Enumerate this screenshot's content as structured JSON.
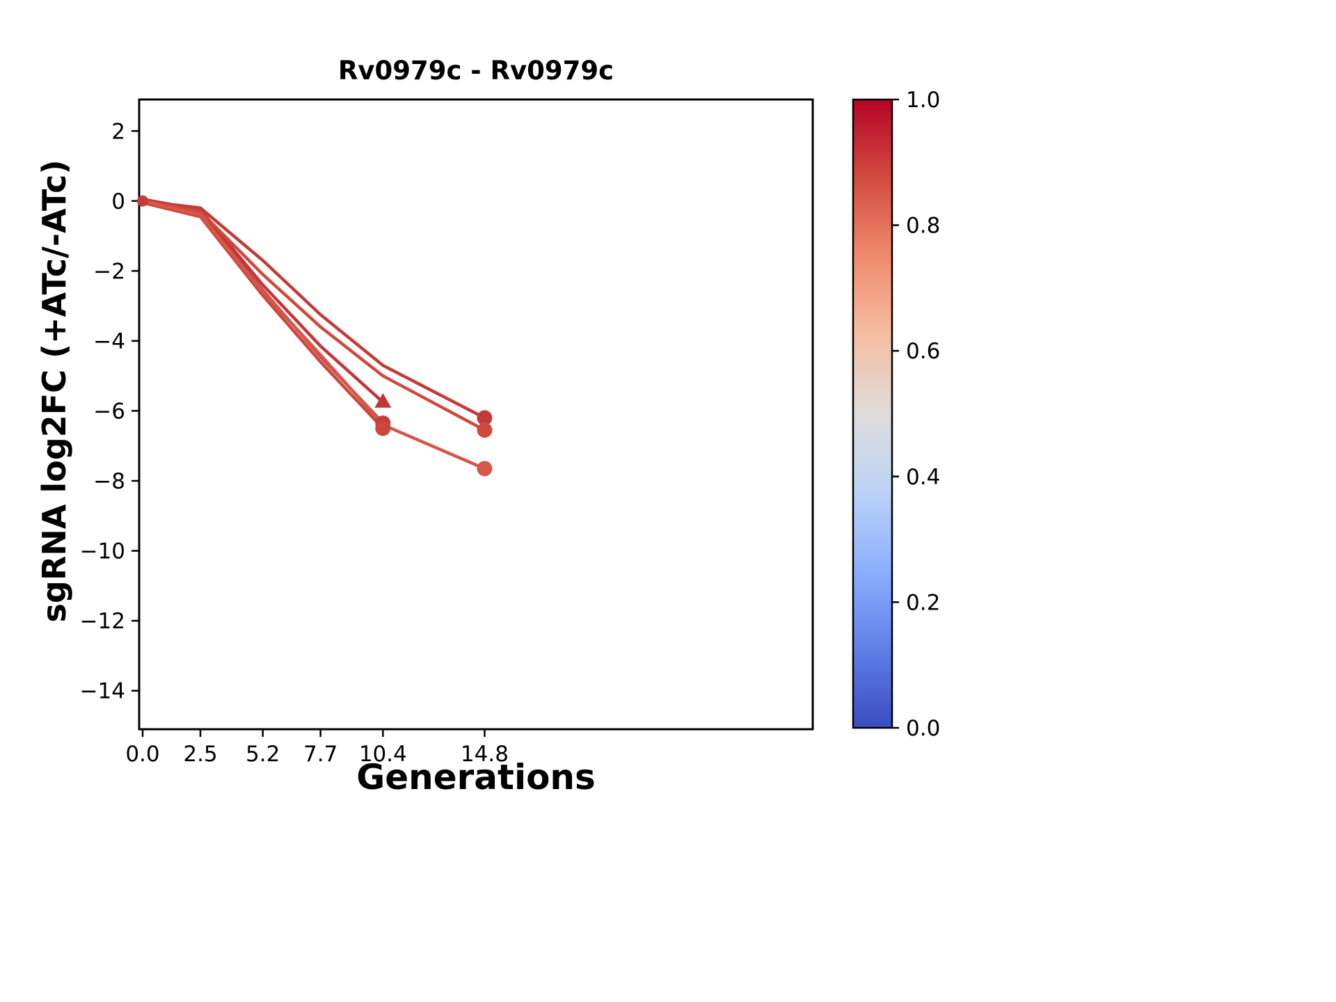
{
  "figure": {
    "background": "#ffffff"
  },
  "chart_data": {
    "type": "line",
    "title": "Rv0979c - Rv0979c",
    "xlabel": "Generations",
    "ylabel": "sgRNA log2FC (+ATc/-ATc)",
    "xlim": [
      -0.15,
      29.0
    ],
    "ylim": [
      -15.1,
      2.9
    ],
    "grid": false,
    "legend": "none",
    "x_ticks": [
      {
        "value": 0.0,
        "label": "0.0"
      },
      {
        "value": 2.5,
        "label": "2.5"
      },
      {
        "value": 5.2,
        "label": "5.2"
      },
      {
        "value": 7.7,
        "label": "7.7"
      },
      {
        "value": 10.4,
        "label": "10.4"
      },
      {
        "value": 14.8,
        "label": "14.8"
      }
    ],
    "y_ticks": [
      {
        "value": 2,
        "label": "2"
      },
      {
        "value": 0,
        "label": "0"
      },
      {
        "value": -2,
        "label": "−2"
      },
      {
        "value": -4,
        "label": "−4"
      },
      {
        "value": -6,
        "label": "−6"
      },
      {
        "value": -8,
        "label": "−8"
      },
      {
        "value": -10,
        "label": "−10"
      },
      {
        "value": -12,
        "label": "−12"
      },
      {
        "value": -14,
        "label": "−14"
      }
    ],
    "series": [
      {
        "marker": "triangle",
        "color": "#c13639",
        "x": [
          0,
          2.5,
          5.2,
          7.7,
          10.4
        ],
        "y": [
          0.05,
          -0.25,
          -2.4,
          -4.15,
          -5.75
        ]
      },
      {
        "marker": "circle",
        "color": "#c73b38",
        "x": [
          0,
          2.5,
          5.2,
          7.7,
          10.4
        ],
        "y": [
          0.0,
          -0.35,
          -2.55,
          -4.45,
          -6.35
        ]
      },
      {
        "marker": "circle",
        "color": "#cc463d",
        "x": [
          0,
          2.5,
          5.2,
          7.7,
          10.4
        ],
        "y": [
          -0.05,
          -0.45,
          -2.7,
          -4.6,
          -6.5
        ]
      },
      {
        "marker": "circle",
        "color": "#c43a39",
        "x": [
          0,
          2.5,
          5.2,
          7.7,
          10.4,
          14.8
        ],
        "y": [
          0.0,
          -0.2,
          -1.7,
          -3.25,
          -4.7,
          -6.2
        ]
      },
      {
        "marker": "circle",
        "color": "#ce4a3f",
        "x": [
          0,
          2.5,
          5.2,
          7.7,
          10.4,
          14.8
        ],
        "y": [
          0.0,
          -0.3,
          -2.1,
          -3.6,
          -5.0,
          -6.55
        ]
      },
      {
        "marker": "circle",
        "color": "#d5574a",
        "x": [
          0,
          2.5,
          5.2,
          7.7,
          10.4,
          14.8
        ],
        "y": [
          0.0,
          -0.4,
          -2.6,
          -4.4,
          -6.4,
          -7.65
        ]
      }
    ],
    "extra_markers": [
      {
        "x": 0,
        "y": 0,
        "marker": "circle",
        "color": "#c73b38",
        "size": 8
      }
    ],
    "colorbar": {
      "position": "right",
      "range": [
        0,
        1
      ],
      "top_value": 1.0,
      "ticks": [
        {
          "value": 1.0,
          "label": "1.0"
        },
        {
          "value": 0.8,
          "label": "0.8"
        },
        {
          "value": 0.6,
          "label": "0.6"
        },
        {
          "value": 0.4,
          "label": "0.4"
        },
        {
          "value": 0.2,
          "label": "0.2"
        },
        {
          "value": 0.0,
          "label": "0.0"
        }
      ],
      "gradient_stops_top_to_bottom": [
        {
          "offset": 0.0,
          "color": "#b40426"
        },
        {
          "offset": 0.125,
          "color": "#d24b40"
        },
        {
          "offset": 0.25,
          "color": "#f08b6e"
        },
        {
          "offset": 0.375,
          "color": "#f6bda2"
        },
        {
          "offset": 0.5,
          "color": "#dedcdb"
        },
        {
          "offset": 0.625,
          "color": "#bcd2f7"
        },
        {
          "offset": 0.75,
          "color": "#8caffe"
        },
        {
          "offset": 0.875,
          "color": "#5f7fe8"
        },
        {
          "offset": 1.0,
          "color": "#3b4cc0"
        }
      ]
    }
  }
}
